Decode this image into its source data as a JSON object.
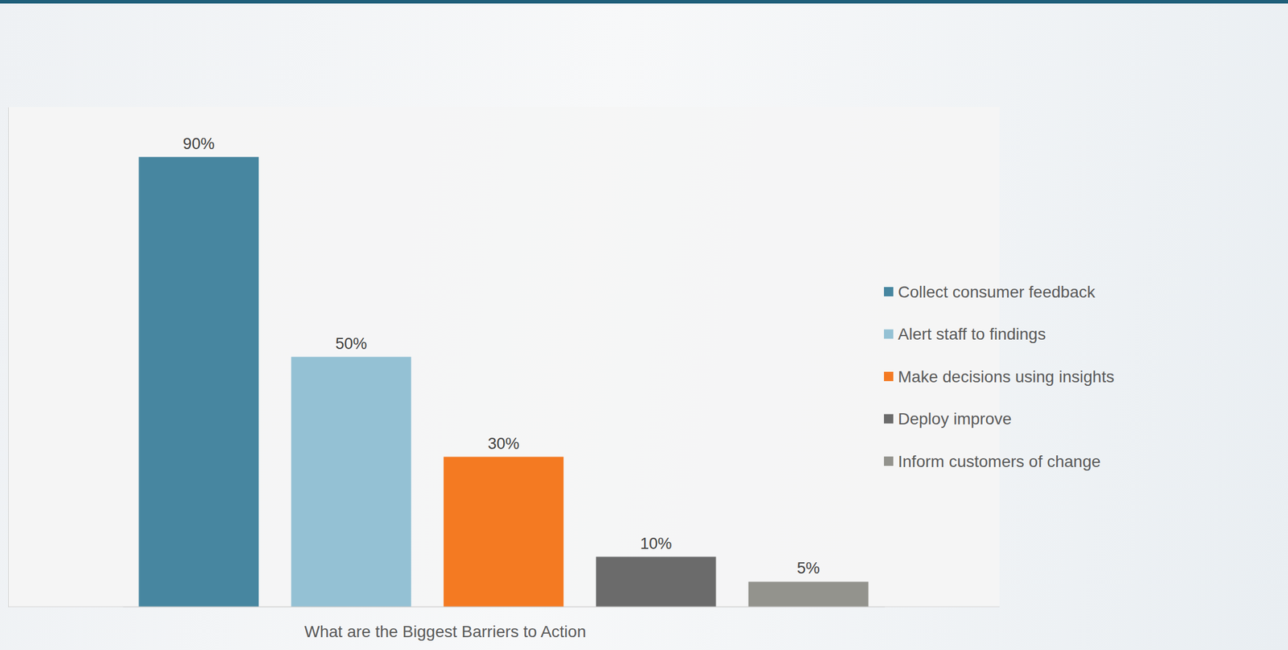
{
  "chart_data": {
    "type": "bar",
    "x_label": "What are the Biggest Barriers to Action",
    "categories": [
      "Collect consumer feedback",
      "Alert staff to findings",
      "Make decisions using insights",
      "Deploy improve",
      "Inform customers of change"
    ],
    "values": [
      90,
      50,
      30,
      10,
      5
    ],
    "value_labels": [
      "90%",
      "50%",
      "30%",
      "10%",
      "5%"
    ],
    "colors": [
      "#4786a0",
      "#94c1d4",
      "#f47a22",
      "#6b6b6b",
      "#93938d"
    ],
    "ylim": [
      0,
      100
    ],
    "data_labels": true,
    "tick_labels": false,
    "legend": "right"
  }
}
